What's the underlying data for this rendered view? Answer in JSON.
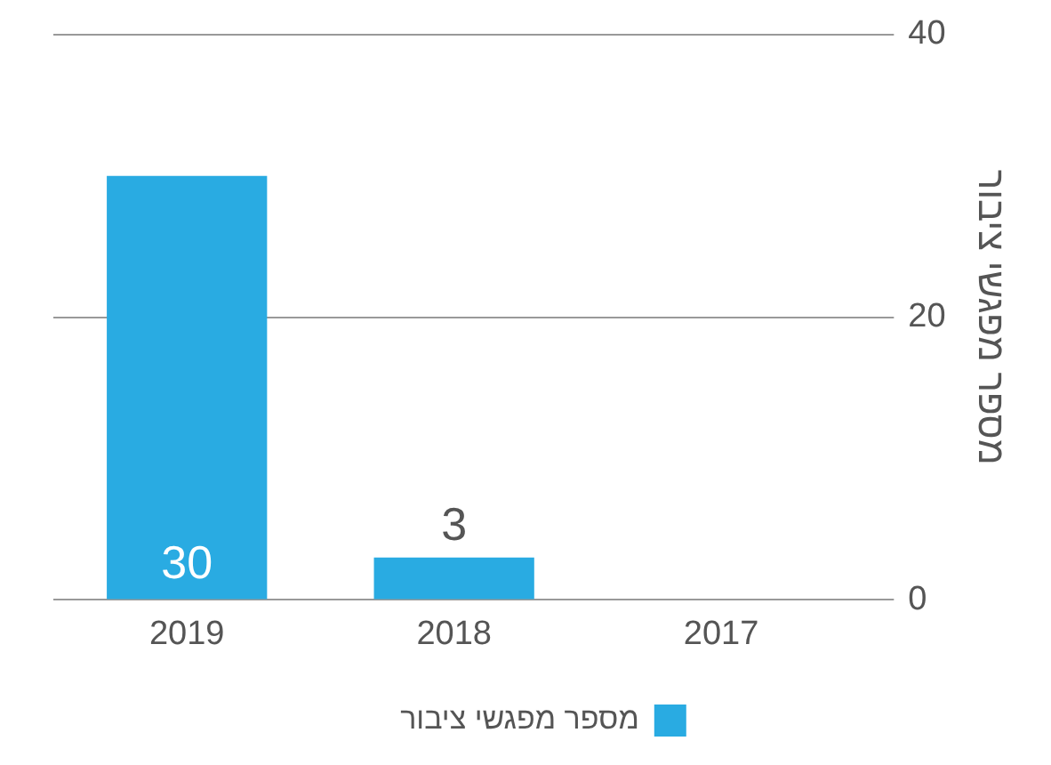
{
  "chart_data": {
    "type": "bar",
    "ylabel": "מספר מפגשי ציבור",
    "categories": [
      "2019",
      "2018",
      "2017"
    ],
    "series": [
      {
        "name": "מספר מפגשי ציבור",
        "color": "#29abe2",
        "values": [
          30,
          3,
          0
        ]
      }
    ],
    "value_labels": [
      "30",
      "3",
      null
    ],
    "ylim": [
      0,
      40
    ],
    "yticks": [
      0,
      20,
      40
    ],
    "grid": "y",
    "legend": "bottom"
  }
}
